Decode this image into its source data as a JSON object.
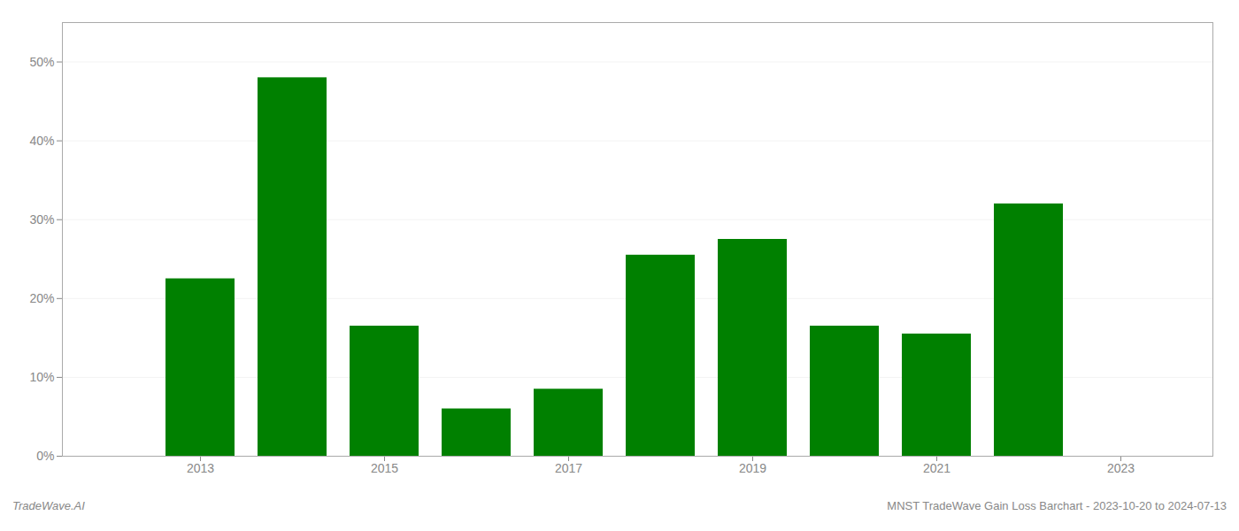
{
  "chart_data": {
    "type": "bar",
    "x": [
      2013,
      2014,
      2015,
      2016,
      2017,
      2018,
      2019,
      2020,
      2021,
      2022
    ],
    "values": [
      0.225,
      0.48,
      0.165,
      0.06,
      0.085,
      0.255,
      0.275,
      0.165,
      0.155,
      0.32
    ],
    "color": "#008000",
    "xlim": [
      2011.5,
      2024.0
    ],
    "xticks": [
      2013,
      2015,
      2017,
      2019,
      2021,
      2023
    ],
    "ylim": [
      0,
      0.55
    ],
    "yticks": [
      {
        "value": 0.0,
        "label": "0%"
      },
      {
        "value": 0.1,
        "label": "10%"
      },
      {
        "value": 0.2,
        "label": "20%"
      },
      {
        "value": 0.3,
        "label": "30%"
      },
      {
        "value": 0.4,
        "label": "40%"
      },
      {
        "value": 0.5,
        "label": "50%"
      }
    ],
    "grid": true,
    "annotations": [
      "TradeWave.AI",
      "MNST TradeWave Gain Loss Barchart - 2023-10-20 to 2024-07-13"
    ]
  }
}
